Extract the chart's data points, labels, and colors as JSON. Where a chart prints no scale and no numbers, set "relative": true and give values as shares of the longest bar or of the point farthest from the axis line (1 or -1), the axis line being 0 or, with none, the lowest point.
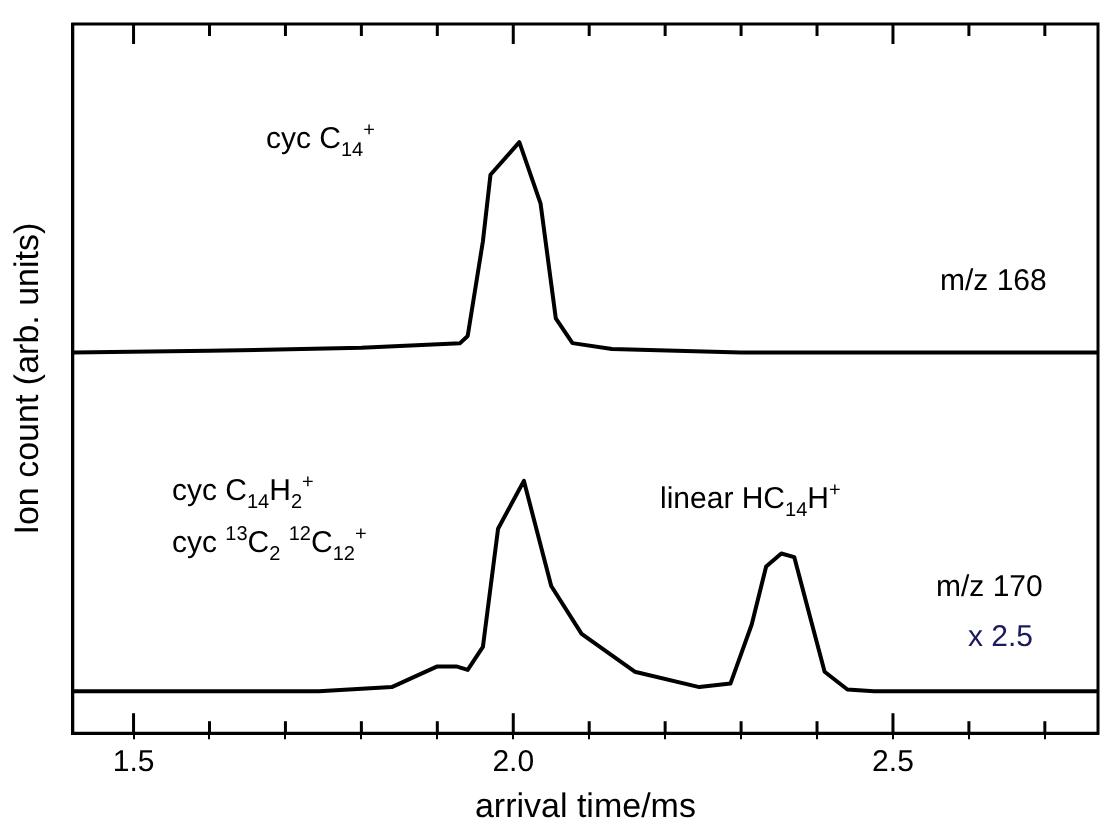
{
  "chart_data": {
    "type": "line",
    "xlabel": "arrival time/ms",
    "ylabel": "Ion count (arb. units)",
    "relative": true,
    "grid": false,
    "legend": false,
    "marker": "none",
    "line_style": "solid",
    "xlim": [
      1.42,
      2.77
    ],
    "xticks": [
      1.5,
      {
        "value": 1.6,
        "label": null
      },
      {
        "value": 1.7,
        "label": null
      },
      {
        "value": 1.8,
        "label": null
      },
      {
        "value": 1.9,
        "label": null
      },
      {
        "value": 2.0,
        "label": "2.0"
      },
      {
        "value": 2.1,
        "label": null
      },
      {
        "value": 2.2,
        "label": null
      },
      {
        "value": 2.3,
        "label": null
      },
      {
        "value": 2.4,
        "label": null
      },
      2.5,
      {
        "value": 2.6,
        "label": null
      },
      {
        "value": 2.7,
        "label": null
      }
    ],
    "series": [
      {
        "color": "#000000",
        "x": [
          1.42,
          1.6,
          1.8,
          1.93,
          1.94,
          1.96,
          1.97,
          2.008,
          2.036,
          2.056,
          2.078,
          2.13,
          2.3,
          2.77
        ],
        "values": [
          0.644,
          0.647,
          0.652,
          0.66,
          0.672,
          0.832,
          0.945,
          1,
          0.896,
          0.702,
          0.66,
          0.65,
          0.644,
          0.644
        ]
      },
      {
        "color": "#000000",
        "x": [
          1.42,
          1.744,
          1.84,
          1.9,
          1.925,
          1.94,
          1.96,
          1.98,
          2.014,
          2.05,
          2.09,
          2.16,
          2.245,
          2.286,
          2.314,
          2.333,
          2.353,
          2.37,
          2.39,
          2.41,
          2.44,
          2.475,
          2.77
        ],
        "values": [
          0.071,
          0.071,
          0.078,
          0.113,
          0.113,
          0.107,
          0.146,
          0.346,
          0.427,
          0.249,
          0.168,
          0.104,
          0.078,
          0.084,
          0.184,
          0.282,
          0.304,
          0.298,
          0.201,
          0.104,
          0.074,
          0.071,
          0.071
        ]
      }
    ],
    "annotations": [
      "cyc C$_{14}$$^{+}$",
      "m/z 168",
      "cyc C$_{14}$H$_{2}$$^{+}$",
      "cyc $^{13}$C$_{2}$ $^{12}$C$_{12}$$^{+}$",
      "linear HC$_{14}$H$^{+}$",
      "m/z 170",
      "x 2.5"
    ]
  }
}
